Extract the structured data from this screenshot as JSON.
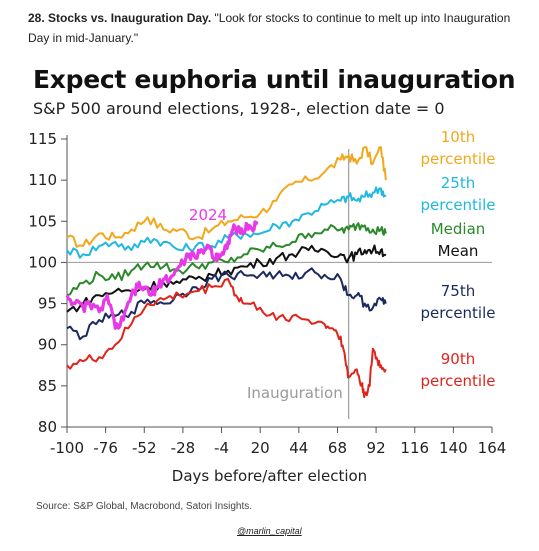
{
  "caption": {
    "lead": "28. Stocks vs. Inauguration Day.",
    "quote": " \"Look for stocks to continue to melt up into Inauguration Day in mid-January.\""
  },
  "credit": "@marlin_capital",
  "chart_data": {
    "type": "line",
    "title": "Expect euphoria until inauguration",
    "subtitle": "S&P 500 around elections, 1928-, election date = 0",
    "xlabel": "Days before/after election",
    "source": "Source: S&P Global, Macrobond, Satori Insights.",
    "xlim": [
      -100,
      164
    ],
    "ylim": [
      80,
      115
    ],
    "xticks": [
      -100,
      -76,
      -52,
      -28,
      -4,
      20,
      44,
      68,
      92,
      116,
      140,
      164
    ],
    "yticks": [
      80,
      85,
      90,
      95,
      100,
      105,
      110,
      115
    ],
    "reference_y": 100,
    "inauguration": {
      "x": 75,
      "label": "Inauguration"
    },
    "series": [
      {
        "name": "10th percentile",
        "label_lines": [
          "10th",
          "percentile"
        ],
        "color": "#f2a81d",
        "x": [
          -100,
          -90,
          -80,
          -70,
          -60,
          -50,
          -40,
          -30,
          -20,
          -10,
          0,
          10,
          20,
          30,
          40,
          50,
          60,
          70,
          75,
          80,
          85,
          90,
          95,
          98
        ],
        "values": [
          103,
          102,
          103.5,
          103,
          104,
          105.5,
          104,
          104,
          103,
          104,
          105,
          105.5,
          106,
          107.5,
          109.5,
          110,
          111,
          112.5,
          113,
          112,
          114,
          112,
          114,
          110
        ]
      },
      {
        "name": "25th percentile",
        "label_lines": [
          "25th",
          "percentile"
        ],
        "color": "#20b8e0",
        "x": [
          -100,
          -90,
          -80,
          -70,
          -60,
          -50,
          -40,
          -30,
          -20,
          -10,
          0,
          10,
          20,
          30,
          40,
          50,
          60,
          70,
          75,
          80,
          85,
          90,
          95,
          98
        ],
        "values": [
          101.5,
          101,
          102,
          102.5,
          101.5,
          103,
          102.5,
          101.5,
          102,
          102,
          103,
          103.5,
          103.5,
          104.5,
          105,
          106,
          107,
          107.5,
          108,
          107.5,
          108,
          108.5,
          109,
          108
        ]
      },
      {
        "name": "Median",
        "label_lines": [
          "Median"
        ],
        "color": "#2a8a2a",
        "x": [
          -100,
          -90,
          -80,
          -70,
          -60,
          -50,
          -40,
          -30,
          -20,
          -10,
          0,
          10,
          20,
          30,
          40,
          50,
          60,
          70,
          75,
          80,
          85,
          90,
          95,
          98
        ],
        "values": [
          96,
          97.5,
          98.5,
          98,
          99,
          100,
          99.5,
          99,
          99.5,
          100,
          100,
          101,
          101.5,
          102,
          102.5,
          103.5,
          104,
          104,
          104,
          104.5,
          104.5,
          104,
          104,
          103.5
        ]
      },
      {
        "name": "Mean",
        "label_lines": [
          "Mean"
        ],
        "color": "#111111",
        "x": [
          -100,
          -90,
          -80,
          -70,
          -60,
          -50,
          -40,
          -30,
          -20,
          -10,
          0,
          10,
          20,
          30,
          40,
          50,
          60,
          70,
          75,
          80,
          85,
          90,
          95,
          98
        ],
        "values": [
          94,
          95,
          96,
          96.5,
          96.5,
          97,
          97.5,
          97.5,
          98,
          98.5,
          99,
          99.5,
          100,
          100.5,
          101,
          101.5,
          101.5,
          101,
          100.5,
          101,
          101.5,
          101.5,
          101.5,
          101
        ]
      },
      {
        "name": "75th percentile",
        "label_lines": [
          "75th",
          "percentile"
        ],
        "color": "#1b2a5e",
        "x": [
          -100,
          -90,
          -80,
          -70,
          -60,
          -50,
          -40,
          -30,
          -20,
          -10,
          0,
          10,
          20,
          30,
          40,
          50,
          60,
          70,
          75,
          80,
          85,
          90,
          95,
          98
        ],
        "values": [
          92,
          91,
          93,
          93.5,
          94,
          95.5,
          95,
          96,
          97,
          98,
          98.5,
          98.5,
          98.5,
          98.5,
          98,
          99,
          98.5,
          98,
          96,
          96,
          95,
          94.5,
          95.5,
          95
        ]
      },
      {
        "name": "90th percentile",
        "label_lines": [
          "90th",
          "percentile"
        ],
        "color": "#e0241c",
        "x": [
          -100,
          -90,
          -80,
          -70,
          -60,
          -50,
          -40,
          -30,
          -20,
          -10,
          0,
          5,
          10,
          20,
          30,
          40,
          50,
          60,
          65,
          70,
          73,
          75,
          80,
          83,
          85,
          88,
          90,
          93,
          95,
          98
        ],
        "values": [
          87.5,
          88,
          88.5,
          90,
          92.5,
          95,
          95.5,
          96,
          96.5,
          97,
          98,
          96,
          95,
          94.5,
          93,
          93.5,
          93,
          92.5,
          92,
          91,
          88,
          86,
          87,
          85,
          84,
          85,
          89.5,
          88,
          87.5,
          87
        ]
      },
      {
        "name": "2024",
        "label_lines": [
          "2024"
        ],
        "color": "#e63ae6",
        "x": [
          -100,
          -95,
          -90,
          -86,
          -80,
          -75,
          -70,
          -65,
          -60,
          -56,
          -52,
          -48,
          -44,
          -40,
          -36,
          -32,
          -28,
          -24,
          -20,
          -16,
          -12,
          -8,
          -6,
          -3,
          0,
          3,
          6,
          9,
          12,
          15,
          18
        ],
        "values": [
          96,
          95,
          94.5,
          95,
          94,
          96,
          92,
          93,
          96,
          97,
          97,
          96,
          97,
          98,
          98,
          99,
          100,
          101,
          100.5,
          101.5,
          102,
          100.5,
          101,
          101,
          102.5,
          104,
          104,
          103.5,
          104.5,
          104,
          105
        ]
      }
    ]
  }
}
